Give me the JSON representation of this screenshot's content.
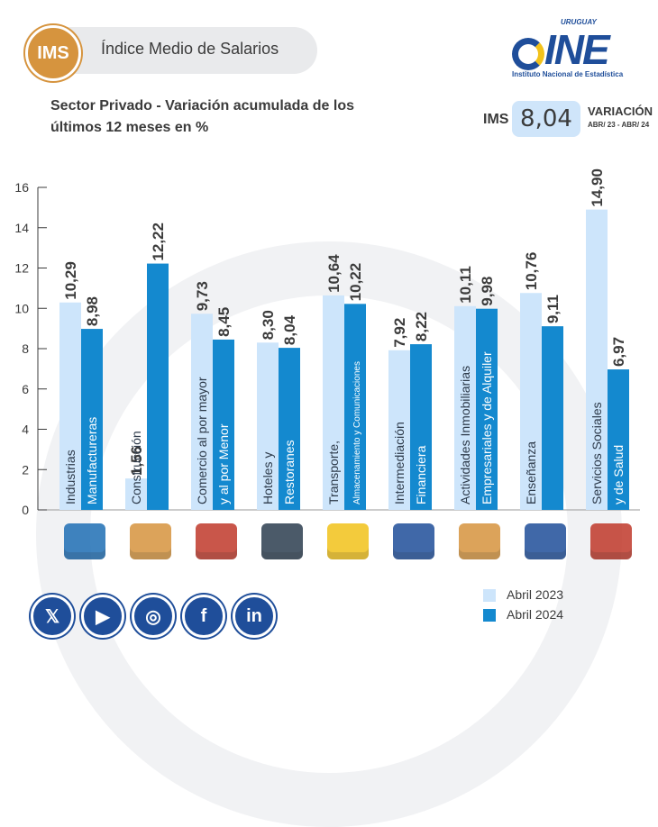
{
  "header": {
    "badge": "IMS",
    "title": "Índice Medio de Salarios",
    "subtitle_line1": "Sector Privado - Variación acumulada de los",
    "subtitle_line2": "últimos 12 meses en %"
  },
  "logo": {
    "country": "URUGUAY",
    "mark": "INE",
    "institution": "Instituto Nacional de Estadística"
  },
  "kpi": {
    "label": "IMS",
    "value": "8,04",
    "variation_label": "VARIACIÓN",
    "period": "ABR/ 23 - ABR/ 24"
  },
  "chart_data": {
    "type": "bar",
    "categories": [
      [
        "Industrias",
        "Manufactureras"
      ],
      [
        "Construcción",
        ""
      ],
      [
        "Comercio al por mayor",
        "y al por Menor"
      ],
      [
        "Hoteles y",
        "Restoranes"
      ],
      [
        "Transporte,",
        "Almacenamiento y Comunicaciones"
      ],
      [
        "Intermediación",
        "Financiera"
      ],
      [
        "Actividades Inmobiliarias",
        "Empresariales y de Alquiler"
      ],
      [
        "Enseñanza",
        ""
      ],
      [
        "Servicios Sociales",
        "y de Salud"
      ]
    ],
    "series": [
      {
        "name": "Abril 2023",
        "color": "#cde5fb",
        "values": [
          10.29,
          1.56,
          9.73,
          8.3,
          10.64,
          7.92,
          10.11,
          10.76,
          14.9
        ],
        "labels": [
          "10,29",
          "1,56",
          "9,73",
          "8,30",
          "10,64",
          "7,92",
          "10,11",
          "10,76",
          "14,90"
        ]
      },
      {
        "name": "Abril 2024",
        "color": "#1489cf",
        "values": [
          8.98,
          12.22,
          8.45,
          8.04,
          10.22,
          8.22,
          9.98,
          9.11,
          6.97
        ],
        "labels": [
          "8,98",
          "12,22",
          "8,45",
          "8,04",
          "10,22",
          "8,22",
          "9,98",
          "9,11",
          "6,97"
        ]
      }
    ],
    "ylim": [
      0,
      16
    ],
    "yticks": [
      "0",
      "2",
      "4",
      "6",
      "8",
      "10",
      "12",
      "14",
      "16"
    ],
    "grid": false,
    "legend_position": "bottom-right"
  },
  "icons": [
    "factory-worker-icon",
    "construction-worker-icon",
    "store-shelves-icon",
    "restaurant-icon",
    "transport-bus-icon",
    "finance-calculator-icon",
    "house-keys-icon",
    "teacher-icon",
    "hospital-icon"
  ],
  "social": {
    "x": "𝕏",
    "youtube": "▶",
    "instagram": "◎",
    "facebook": "f",
    "linkedin": "in"
  },
  "colors": {
    "accent_orange": "#d6943e",
    "brand_blue": "#1f4e9a",
    "light_bar": "#cde5fb",
    "dark_bar": "#1489cf"
  }
}
